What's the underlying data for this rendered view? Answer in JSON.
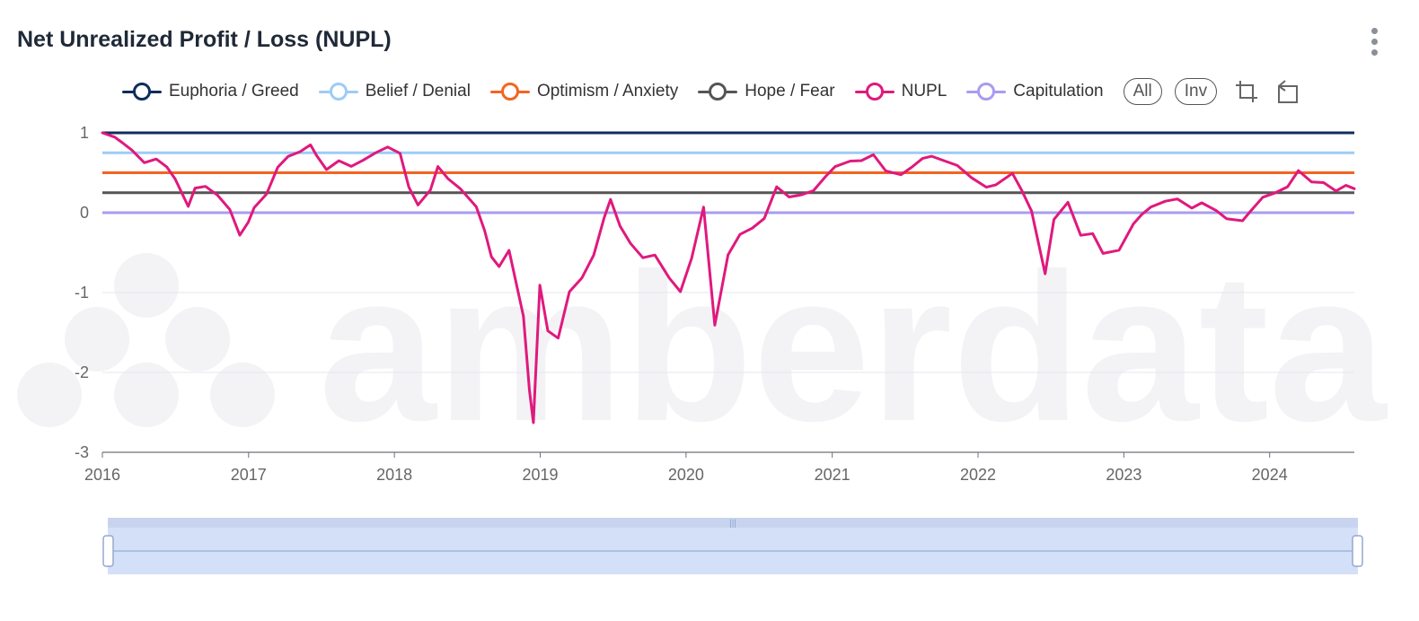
{
  "title": "Net Unrealized Profit / Loss (NUPL)",
  "watermark_text": "amberdata",
  "legend": [
    {
      "label": "Euphoria / Greed",
      "color": "#0f2d5c"
    },
    {
      "label": "Belief / Denial",
      "color": "#9dccf5"
    },
    {
      "label": "Optimism / Anxiety",
      "color": "#f26522"
    },
    {
      "label": "Hope / Fear",
      "color": "#555555"
    },
    {
      "label": "NUPL",
      "color": "#e0197d"
    },
    {
      "label": "Capitulation",
      "color": "#a99cf0"
    }
  ],
  "buttons": {
    "all_label": "All",
    "inv_label": "Inv"
  },
  "icons": [
    "more-vertical-icon",
    "crop-icon",
    "restore-icon"
  ],
  "chart_data": {
    "type": "line",
    "title": "Net Unrealized Profit / Loss (NUPL)",
    "x_range": [
      "2016-01-01",
      "2024-07-31"
    ],
    "x_ticks": [
      "2016",
      "2017",
      "2018",
      "2019",
      "2020",
      "2021",
      "2022",
      "2023",
      "2024"
    ],
    "y_ticks": [
      1,
      0,
      -1,
      -2,
      -3
    ],
    "ylim": [
      -3,
      1
    ],
    "grid": true,
    "legend_position": "top",
    "thresholds": [
      {
        "name": "Euphoria / Greed",
        "value": 1.0
      },
      {
        "name": "Belief / Denial",
        "value": 0.75
      },
      {
        "name": "Optimism / Anxiety",
        "value": 0.5
      },
      {
        "name": "Hope / Fear",
        "value": 0.25
      },
      {
        "name": "Capitulation",
        "value": 0.0
      }
    ],
    "series": [
      {
        "name": "NUPL",
        "x": [
          "2016-01-01",
          "2016-02-01",
          "2016-02-20",
          "2016-03-15",
          "2016-04-15",
          "2016-05-15",
          "2016-06-10",
          "2016-07-01",
          "2016-08-03",
          "2016-08-20",
          "2016-09-15",
          "2016-10-15",
          "2016-11-15",
          "2016-12-10",
          "2016-12-31",
          "2017-01-15",
          "2017-02-15",
          "2017-03-15",
          "2017-04-10",
          "2017-05-10",
          "2017-06-05",
          "2017-06-20",
          "2017-07-15",
          "2017-08-15",
          "2017-09-15",
          "2017-10-15",
          "2017-11-15",
          "2017-12-15",
          "2018-01-15",
          "2018-02-06",
          "2018-03-01",
          "2018-04-01",
          "2018-04-20",
          "2018-05-15",
          "2018-06-15",
          "2018-07-25",
          "2018-08-15",
          "2018-09-01",
          "2018-09-20",
          "2018-10-15",
          "2018-11-20",
          "2018-12-05",
          "2018-12-15",
          "2018-12-31",
          "2019-01-20",
          "2019-02-15",
          "2019-03-15",
          "2019-04-15",
          "2019-05-15",
          "2019-06-10",
          "2019-06-26",
          "2019-07-20",
          "2019-08-15",
          "2019-09-15",
          "2019-10-15",
          "2019-11-20",
          "2019-12-18",
          "2020-01-15",
          "2020-02-14",
          "2020-03-13",
          "2020-04-15",
          "2020-05-15",
          "2020-06-15",
          "2020-07-15",
          "2020-08-15",
          "2020-09-15",
          "2020-10-15",
          "2020-11-15",
          "2020-12-15",
          "2021-01-08",
          "2021-02-15",
          "2021-03-15",
          "2021-04-14",
          "2021-05-15",
          "2021-06-22",
          "2021-07-20",
          "2021-08-15",
          "2021-09-07",
          "2021-10-20",
          "2021-11-10",
          "2021-12-15",
          "2022-01-22",
          "2022-02-15",
          "2022-03-28",
          "2022-04-20",
          "2022-05-15",
          "2022-06-18",
          "2022-07-10",
          "2022-08-14",
          "2022-09-15",
          "2022-10-15",
          "2022-11-10",
          "2022-12-20",
          "2023-01-25",
          "2023-02-15",
          "2023-03-10",
          "2023-04-15",
          "2023-05-15",
          "2023-06-20",
          "2023-07-15",
          "2023-08-20",
          "2023-09-15",
          "2023-10-25",
          "2023-11-15",
          "2023-12-15",
          "2024-01-15",
          "2024-02-15",
          "2024-03-13",
          "2024-04-15",
          "2024-05-15",
          "2024-06-15",
          "2024-07-10",
          "2024-07-31"
        ],
        "values": [
          1.0,
          0.92,
          0.85,
          0.78,
          0.65,
          0.7,
          0.58,
          0.4,
          0.05,
          0.3,
          0.35,
          0.25,
          0.05,
          -0.3,
          -0.15,
          0.05,
          0.25,
          0.6,
          0.72,
          0.75,
          0.82,
          0.7,
          0.55,
          0.68,
          0.6,
          0.65,
          0.72,
          0.8,
          0.75,
          0.35,
          0.12,
          0.28,
          0.55,
          0.4,
          0.3,
          0.1,
          -0.2,
          -0.55,
          -0.7,
          -0.5,
          -1.3,
          -2.2,
          -2.6,
          -0.9,
          -1.5,
          -1.6,
          -1.0,
          -0.8,
          -0.5,
          -0.05,
          0.15,
          -0.2,
          -0.4,
          -0.55,
          -0.5,
          -0.8,
          -1.0,
          -0.6,
          0.05,
          -1.4,
          -0.5,
          -0.25,
          -0.2,
          -0.1,
          0.3,
          0.2,
          0.25,
          0.3,
          0.45,
          0.55,
          0.62,
          0.65,
          0.75,
          0.55,
          0.48,
          0.55,
          0.65,
          0.7,
          0.65,
          0.62,
          0.45,
          0.3,
          0.32,
          0.48,
          0.3,
          0.05,
          -0.75,
          -0.1,
          0.1,
          -0.3,
          -0.25,
          -0.48,
          -0.45,
          -0.15,
          -0.05,
          0.05,
          0.15,
          0.2,
          0.08,
          0.12,
          0.0,
          -0.1,
          -0.1,
          0.05,
          0.22,
          0.25,
          0.3,
          0.5,
          0.38,
          0.4,
          0.3,
          0.35,
          0.3
        ]
      }
    ]
  }
}
